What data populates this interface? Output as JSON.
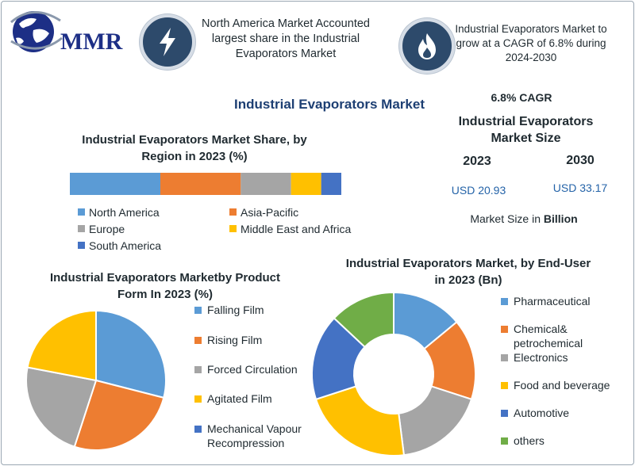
{
  "logo": {
    "text": "MMR"
  },
  "header": {
    "left_text": "North America Market Accounted largest share in the Industrial Evaporators Market",
    "right_text": "Industrial Evaporators Market to grow at a CAGR of 6.8% during 2024-2030",
    "left_icon": "lightning-icon",
    "right_icon": "flame-icon"
  },
  "main_title": "Industrial Evaporators Market",
  "kpi": {
    "cagr": "6.8% CAGR",
    "size_title": "Industrial Evaporators Market Size",
    "year1": "2023",
    "year2": "2030",
    "value1": "USD 20.93",
    "value2": "USD 33.17",
    "unit_prefix": "Market Size in",
    "unit_bold": "Billion"
  },
  "colors": {
    "blue": "#5b9bd5",
    "orange": "#ed7d31",
    "gray": "#a5a5a5",
    "yellow": "#ffc000",
    "dark_blue": "#4472c4",
    "green": "#70ad47",
    "title_navy": "#1d3f73",
    "value_blue": "#2463a8"
  },
  "chart_data": [
    {
      "type": "bar",
      "title": "Industrial Evaporators Market Share, by Region in 2023 (%)",
      "stacked": true,
      "orientation": "horizontal",
      "categories": [
        "North America",
        "Asia-Pacific",
        "Europe",
        "Middle East and Africa",
        "South America"
      ],
      "values": [
        36,
        32,
        20,
        12,
        8
      ],
      "colors": [
        "#5b9bd5",
        "#ed7d31",
        "#a5a5a5",
        "#ffc000",
        "#4472c4"
      ],
      "legend_position": "bottom"
    },
    {
      "type": "pie",
      "title": "Industrial Evaporators Marketby Product Form In 2023 (%)",
      "categories": [
        "Falling Film",
        "Rising Film",
        "Forced Circulation",
        "Agitated Film",
        "Mechanical Vapour Recompression"
      ],
      "values": [
        29,
        26,
        23,
        22,
        0
      ],
      "colors": [
        "#5b9bd5",
        "#ed7d31",
        "#a5a5a5",
        "#ffc000",
        "#4472c4"
      ],
      "legend_position": "right"
    },
    {
      "type": "pie",
      "donut": true,
      "title": "Industrial Evaporators Market, by End-User in 2023 (Bn)",
      "categories": [
        "Pharmaceutical",
        "Chemical& petrochemical",
        "Electronics",
        "Food and beverage",
        "Automotive",
        "others"
      ],
      "values": [
        14,
        16,
        18,
        22,
        17,
        13
      ],
      "colors": [
        "#5b9bd5",
        "#ed7d31",
        "#a5a5a5",
        "#ffc000",
        "#4472c4",
        "#70ad47"
      ],
      "legend_position": "right"
    }
  ]
}
